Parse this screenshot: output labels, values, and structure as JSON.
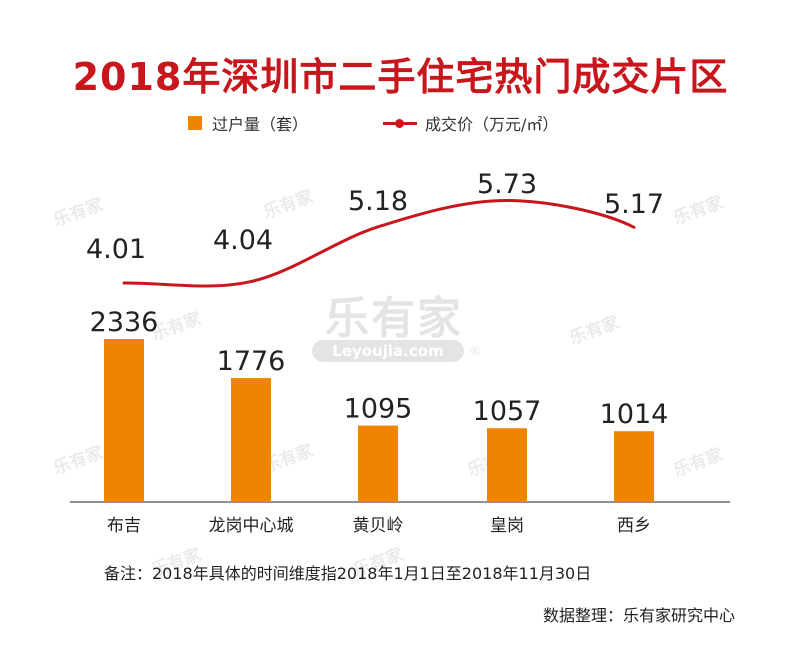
{
  "title": "2018年深圳市二手住宅热门成交片区",
  "legend": {
    "bar_label": "过户量（套）",
    "line_label": "成交价（万元/㎡）"
  },
  "colors": {
    "title": "#c8161d",
    "bar": "#f08400",
    "line": "#c8161d",
    "axis": "#6b6b6b"
  },
  "chart_data": {
    "type": "bar",
    "categories": [
      "布吉",
      "龙岗中心城",
      "黄贝岭",
      "皇岗",
      "西乡"
    ],
    "series": [
      {
        "name": "过户量（套）",
        "type": "bar",
        "values": [
          2336,
          1776,
          1095,
          1057,
          1014
        ]
      },
      {
        "name": "成交价（万元/㎡）",
        "type": "line",
        "values": [
          4.01,
          4.04,
          5.18,
          5.73,
          5.17
        ]
      }
    ],
    "bar_value_labels": [
      "2336",
      "1776",
      "1095",
      "1057",
      "1014"
    ],
    "line_value_labels": [
      "4.01",
      "4.04",
      "5.18",
      "5.73",
      "5.17"
    ],
    "legend_position": "top",
    "grid": false
  },
  "watermark": {
    "brand_cn": "乐有家",
    "brand_en": "Leyoujia.com",
    "registered": "®"
  },
  "footnote": "备注：2018年具体的时间维度指2018年1月1日至2018年11月30日",
  "source": "数据整理：乐有家研究中心"
}
